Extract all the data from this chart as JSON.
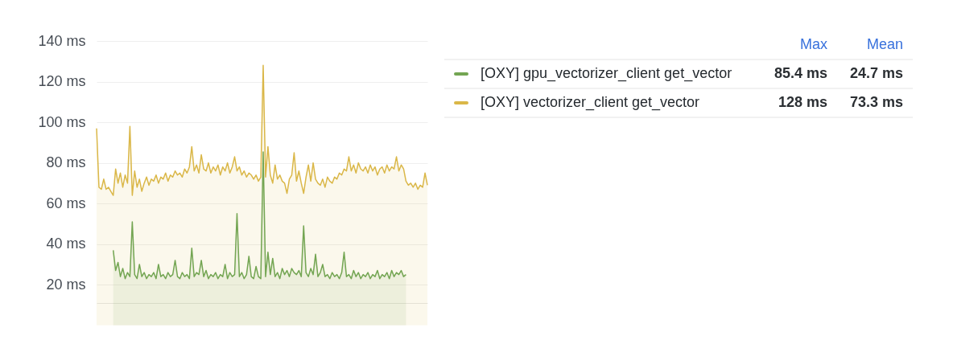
{
  "chart_data": {
    "type": "area",
    "categories": [
      null,
      null,
      null,
      null,
      null,
      null,
      null,
      null,
      null,
      null,
      null,
      null,
      null,
      null,
      null,
      null,
      null,
      null,
      null,
      null,
      null,
      null,
      null,
      null,
      null,
      null,
      null,
      null,
      null,
      null,
      null,
      null,
      null,
      null,
      null,
      null,
      null,
      null,
      null,
      null,
      null,
      null,
      null,
      null,
      null,
      null,
      null,
      null,
      null,
      null,
      null,
      null,
      null,
      null,
      null,
      null,
      null,
      null,
      null,
      null,
      null,
      null,
      null,
      null,
      null,
      null,
      null,
      null,
      null,
      null,
      null,
      null,
      null,
      null,
      null,
      null,
      null,
      null,
      null,
      null,
      null,
      null,
      null,
      null,
      null,
      null,
      null,
      null,
      null,
      null,
      null,
      null,
      null,
      null,
      null,
      null,
      null,
      null,
      null,
      null,
      null,
      null,
      null,
      null,
      null,
      null,
      null,
      null,
      null,
      null,
      null,
      null,
      null,
      null,
      null,
      null,
      null,
      null,
      null,
      null,
      null,
      null,
      null,
      null,
      null,
      null,
      null,
      null,
      null,
      null,
      null,
      null,
      null,
      null,
      null,
      null,
      null,
      null,
      null,
      null
    ],
    "series": [
      {
        "name": "[OXY] gpu_vectorizer_client get_vector",
        "color": "#73a552",
        "values": [
          null,
          null,
          null,
          null,
          null,
          null,
          null,
          37,
          27,
          31,
          24,
          28,
          23,
          26,
          24,
          51,
          25,
          23,
          30,
          24,
          26,
          23,
          25,
          24,
          26,
          23,
          30,
          24,
          25,
          23,
          26,
          24,
          25,
          32,
          24,
          23,
          26,
          24,
          25,
          23,
          38,
          24,
          26,
          25,
          32,
          24,
          27,
          23,
          25,
          24,
          26,
          23,
          25,
          24,
          30,
          23,
          26,
          24,
          25,
          55,
          24,
          26,
          23,
          25,
          34,
          24,
          23,
          29,
          24,
          23,
          85.4,
          24,
          36,
          25,
          33,
          24,
          26,
          23,
          28,
          25,
          27,
          24,
          28,
          26,
          25,
          27,
          24,
          49,
          26,
          24,
          28,
          25,
          35,
          24,
          26,
          30,
          24,
          25,
          23,
          26,
          24,
          25,
          23,
          26,
          36,
          24,
          25,
          23,
          27,
          24,
          26,
          23,
          25,
          24,
          26,
          23,
          25,
          24,
          27,
          23,
          25,
          24,
          26,
          23,
          27,
          24,
          26,
          25,
          27,
          24,
          25,
          null,
          null,
          null,
          null,
          null,
          null,
          null,
          null,
          null
        ]
      },
      {
        "name": "[OXY] vectorizer_client get_vector",
        "color": "#dab748",
        "values": [
          97,
          68,
          67,
          72,
          67,
          68,
          66,
          64,
          77,
          70,
          75,
          68,
          74,
          70,
          98,
          64,
          76,
          68,
          72,
          66,
          70,
          73,
          69,
          72,
          71,
          74,
          70,
          73,
          72,
          75,
          71,
          74,
          73,
          76,
          74,
          75,
          73,
          77,
          75,
          78,
          88,
          76,
          79,
          75,
          84,
          77,
          76,
          80,
          75,
          78,
          76,
          79,
          74,
          78,
          76,
          80,
          75,
          78,
          83,
          76,
          78,
          74,
          76,
          73,
          75,
          74,
          72,
          74,
          71,
          73,
          128,
          73,
          88,
          74,
          70,
          79,
          72,
          74,
          71,
          70,
          65,
          72,
          74,
          85,
          71,
          76,
          70,
          65,
          73,
          79,
          71,
          80,
          72,
          70,
          69,
          72,
          68,
          73,
          71,
          70,
          73,
          72,
          75,
          74,
          77,
          76,
          83,
          76,
          79,
          75,
          80,
          77,
          76,
          78,
          75,
          79,
          76,
          78,
          74,
          77,
          78,
          75,
          79,
          76,
          78,
          77,
          83,
          76,
          79,
          77,
          71,
          69,
          70,
          68,
          70,
          67,
          69,
          68,
          75,
          69
        ]
      }
    ],
    "ylim": [
      11,
      140
    ],
    "yticks": [
      {
        "value": 20,
        "label": "20 ms"
      },
      {
        "value": 40,
        "label": "40 ms"
      },
      {
        "value": 60,
        "label": "60 ms"
      },
      {
        "value": 80,
        "label": "80 ms"
      },
      {
        "value": 100,
        "label": "100 ms"
      },
      {
        "value": 120,
        "label": "120 ms"
      },
      {
        "value": 140,
        "label": "140 ms"
      }
    ],
    "grid": "y",
    "legend": "right",
    "annotations": [
      "Max",
      "Mean",
      "85.4 ms",
      "24.7 ms",
      "128 ms",
      "73.3 ms"
    ]
  }
}
